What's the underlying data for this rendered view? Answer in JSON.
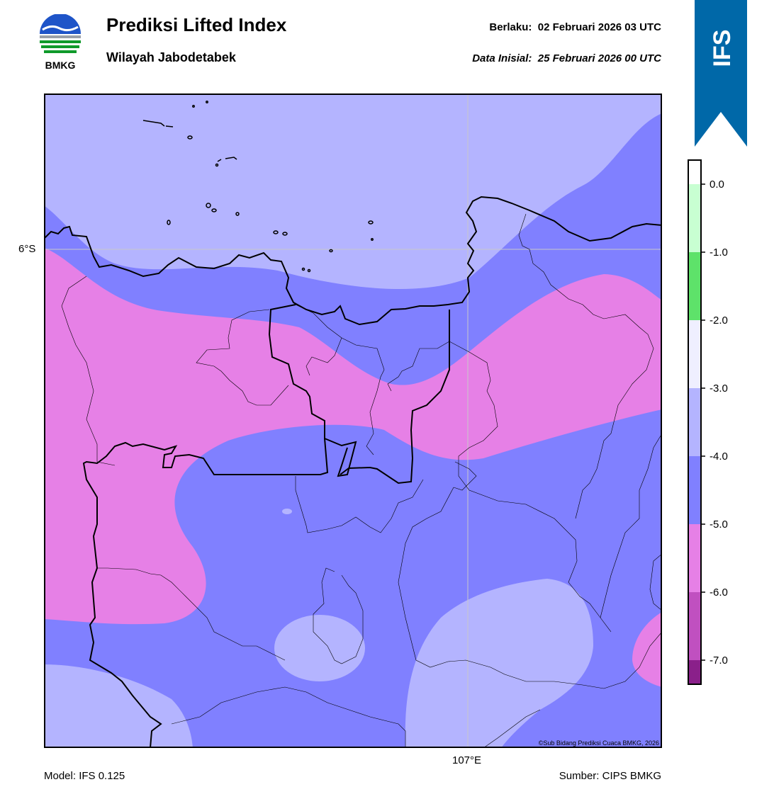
{
  "header": {
    "title": "Prediksi Lifted Index",
    "subtitle": "Wilayah Jabodetabek",
    "valid_label": "Berlaku:",
    "valid_time": "02 Februari 2026 03 UTC",
    "init_label": "Data Inisial:",
    "init_time": "25 Februari 2026 00 UTC"
  },
  "logo": {
    "text": "BMKG",
    "icon": "bmkg-logo-icon"
  },
  "ribbon": {
    "text": "IFS",
    "color": "#0068a8"
  },
  "map": {
    "lat_label": "6°S",
    "lon_label": "107°E",
    "copyright": "©Sub Bidang Prediksi Cuaca BMKG, 2026"
  },
  "footer": {
    "model": "Model: IFS 0.125",
    "source": "Sumber: CIPS BMKG"
  },
  "colorbar": {
    "ticks": [
      "0.0",
      "-1.0",
      "-2.0",
      "-3.0",
      "-4.0",
      "-5.0",
      "-6.0",
      "-7.0"
    ],
    "colors": [
      "#ffffff",
      "#c8ffd2",
      "#5ee26a",
      "#efefff",
      "#b4b4ff",
      "#8080ff",
      "#e680e6",
      "#c050c0",
      "#8a208a"
    ]
  }
}
